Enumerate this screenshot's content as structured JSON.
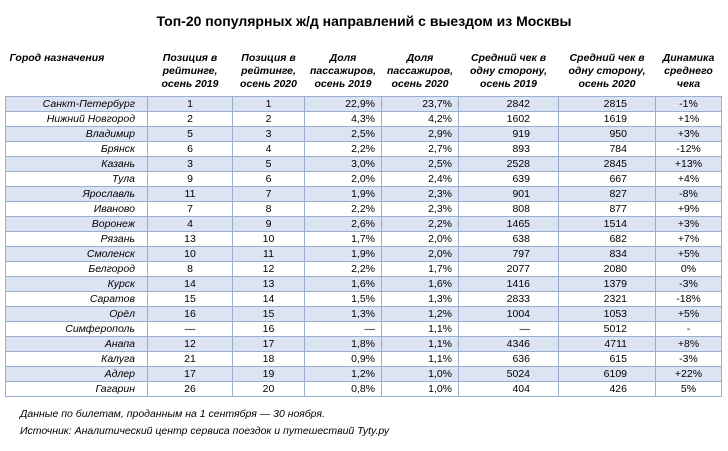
{
  "title": "Топ-20 популярных ж/д направлений с выездом из Москвы",
  "headers": [
    "Город назначения",
    "Позиция в рейтинге, осень 2019",
    "Позиция в рейтинге, осень 2020",
    "Доля пассажиров, осень 2019",
    "Доля пассажиров, осень 2020",
    "Средний чек в одну сторону, осень 2019",
    "Средний чек в одну сторону, осень 2020",
    "Динамика среднего чека"
  ],
  "rows": [
    [
      "Санкт-Петербург",
      "1",
      "1",
      "22,9%",
      "23,7%",
      "2842",
      "2815",
      "-1%"
    ],
    [
      "Нижний Новгород",
      "2",
      "2",
      "4,3%",
      "4,2%",
      "1602",
      "1619",
      "+1%"
    ],
    [
      "Владимир",
      "5",
      "3",
      "2,5%",
      "2,9%",
      "919",
      "950",
      "+3%"
    ],
    [
      "Брянск",
      "6",
      "4",
      "2,2%",
      "2,7%",
      "893",
      "784",
      "-12%"
    ],
    [
      "Казань",
      "3",
      "5",
      "3,0%",
      "2,5%",
      "2528",
      "2845",
      "+13%"
    ],
    [
      "Тула",
      "9",
      "6",
      "2,0%",
      "2,4%",
      "639",
      "667",
      "+4%"
    ],
    [
      "Ярославль",
      "11",
      "7",
      "1,9%",
      "2,3%",
      "901",
      "827",
      "-8%"
    ],
    [
      "Иваново",
      "7",
      "8",
      "2,2%",
      "2,3%",
      "808",
      "877",
      "+9%"
    ],
    [
      "Воронеж",
      "4",
      "9",
      "2,6%",
      "2,2%",
      "1465",
      "1514",
      "+3%"
    ],
    [
      "Рязань",
      "13",
      "10",
      "1,7%",
      "2,0%",
      "638",
      "682",
      "+7%"
    ],
    [
      "Смоленск",
      "10",
      "11",
      "1,9%",
      "2,0%",
      "797",
      "834",
      "+5%"
    ],
    [
      "Белгород",
      "8",
      "12",
      "2,2%",
      "1,7%",
      "2077",
      "2080",
      "0%"
    ],
    [
      "Курск",
      "14",
      "13",
      "1,6%",
      "1,6%",
      "1416",
      "1379",
      "-3%"
    ],
    [
      "Саратов",
      "15",
      "14",
      "1,5%",
      "1,3%",
      "2833",
      "2321",
      "-18%"
    ],
    [
      "Орёл",
      "16",
      "15",
      "1,3%",
      "1,2%",
      "1004",
      "1053",
      "+5%"
    ],
    [
      "Симферополь",
      "—",
      "16",
      "—",
      "1,1%",
      "—",
      "5012",
      "-"
    ],
    [
      "Анапа",
      "12",
      "17",
      "1,8%",
      "1,1%",
      "4346",
      "4711",
      "+8%"
    ],
    [
      "Калуга",
      "21",
      "18",
      "0,9%",
      "1,1%",
      "636",
      "615",
      "-3%"
    ],
    [
      "Адлер",
      "17",
      "19",
      "1,2%",
      "1,0%",
      "5024",
      "6109",
      "+22%"
    ],
    [
      "Гагарин",
      "26",
      "20",
      "0,8%",
      "1,0%",
      "404",
      "426",
      "5%"
    ]
  ],
  "footnotes": [
    "Данные по билетам, проданным на 1 сентября — 30 ноября.",
    "Источник: Аналитический центр сервиса поездок и путешествий Tyty.ру"
  ]
}
